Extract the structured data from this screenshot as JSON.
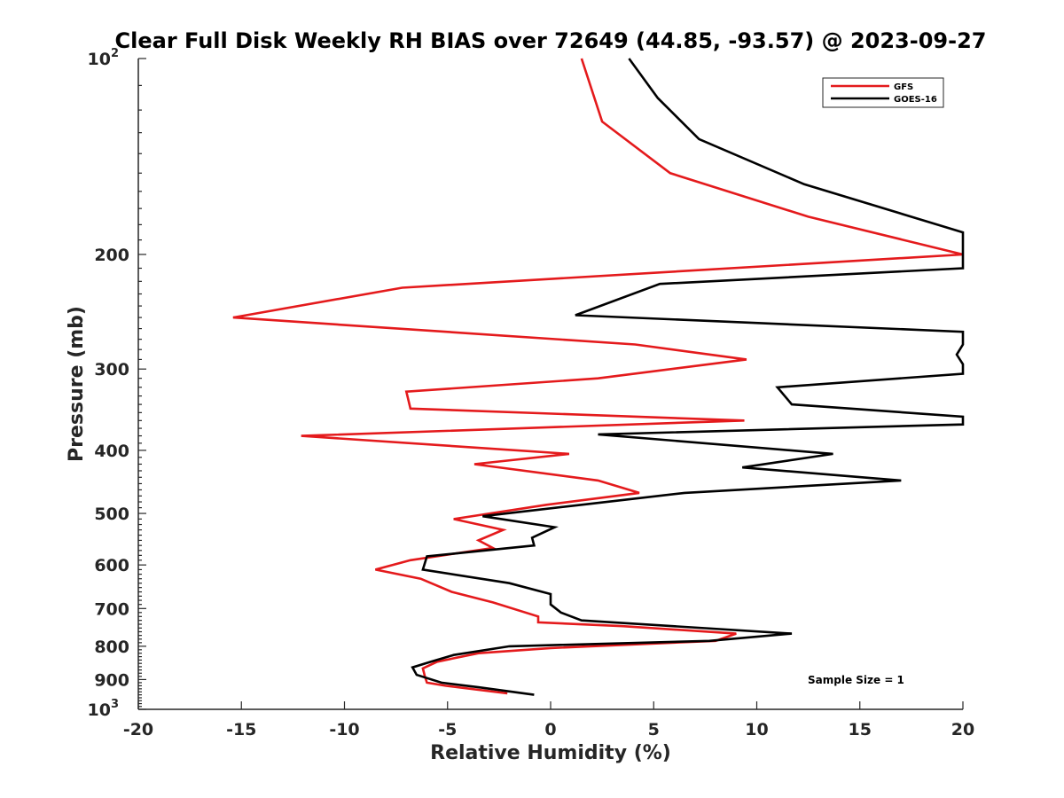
{
  "chart_data": {
    "type": "line",
    "title": "Clear Full Disk Weekly RH BIAS over 72649 (44.85, -93.57) @ 2023-09-27",
    "xlabel": "Relative Humidity (%)",
    "ylabel": "Pressure (mb)",
    "xlim": [
      -20,
      20
    ],
    "ylim": [
      100,
      1000
    ],
    "y_scale": "log",
    "y_reversed": true,
    "x_ticks": [
      "-20",
      "-15",
      "-10",
      "-5",
      "0",
      "5",
      "10",
      "15",
      "20"
    ],
    "y_ticks": [
      {
        "value": 100,
        "base": "10",
        "exp": "2"
      },
      {
        "value": 200,
        "label": "200"
      },
      {
        "value": 300,
        "label": "300"
      },
      {
        "value": 400,
        "label": "400"
      },
      {
        "value": 500,
        "label": "500"
      },
      {
        "value": 600,
        "label": "600"
      },
      {
        "value": 700,
        "label": "700"
      },
      {
        "value": 800,
        "label": "800"
      },
      {
        "value": 900,
        "label": "900"
      },
      {
        "value": 1000,
        "base": "10",
        "exp": "3"
      }
    ],
    "grid": false,
    "legend_position": "top-right",
    "annotation": "Sample Size = 1",
    "series": [
      {
        "name": "GFS",
        "color": "#e41a1c",
        "points": [
          {
            "x": 1.5,
            "y": 100
          },
          {
            "x": 2.5,
            "y": 125
          },
          {
            "x": 5.8,
            "y": 150
          },
          {
            "x": 12.5,
            "y": 175
          },
          {
            "x": 20.5,
            "y": 200
          },
          {
            "x": -7.2,
            "y": 225
          },
          {
            "x": -15.4,
            "y": 250
          },
          {
            "x": 4.1,
            "y": 275
          },
          {
            "x": 9.5,
            "y": 290
          },
          {
            "x": 2.3,
            "y": 310
          },
          {
            "x": -7.0,
            "y": 325
          },
          {
            "x": -6.8,
            "y": 345
          },
          {
            "x": 9.4,
            "y": 360
          },
          {
            "x": -12.1,
            "y": 380
          },
          {
            "x": 0.9,
            "y": 405
          },
          {
            "x": -3.7,
            "y": 420
          },
          {
            "x": 2.3,
            "y": 445
          },
          {
            "x": 4.3,
            "y": 465
          },
          {
            "x": -0.2,
            "y": 485
          },
          {
            "x": -4.7,
            "y": 510
          },
          {
            "x": -2.3,
            "y": 530
          },
          {
            "x": -3.5,
            "y": 550
          },
          {
            "x": -2.8,
            "y": 565
          },
          {
            "x": -6.8,
            "y": 590
          },
          {
            "x": -8.5,
            "y": 610
          },
          {
            "x": -6.3,
            "y": 630
          },
          {
            "x": -4.8,
            "y": 660
          },
          {
            "x": -2.8,
            "y": 685
          },
          {
            "x": -0.6,
            "y": 720
          },
          {
            "x": -0.6,
            "y": 735
          },
          {
            "x": 3.5,
            "y": 745
          },
          {
            "x": 9.0,
            "y": 765
          },
          {
            "x": 8.0,
            "y": 785
          },
          {
            "x": 0.0,
            "y": 805
          },
          {
            "x": -3.5,
            "y": 820
          },
          {
            "x": -5.5,
            "y": 845
          },
          {
            "x": -6.2,
            "y": 865
          },
          {
            "x": -6.1,
            "y": 890
          },
          {
            "x": -6.0,
            "y": 910
          },
          {
            "x": -5.1,
            "y": 920
          },
          {
            "x": -2.1,
            "y": 945
          }
        ]
      },
      {
        "name": "GOES-16",
        "color": "#000000",
        "points": [
          {
            "x": 3.8,
            "y": 100
          },
          {
            "x": 5.2,
            "y": 115
          },
          {
            "x": 7.2,
            "y": 133
          },
          {
            "x": 12.3,
            "y": 156
          },
          {
            "x": 20.0,
            "y": 185
          },
          {
            "x": 20.0,
            "y": 210
          },
          {
            "x": 5.3,
            "y": 222
          },
          {
            "x": 1.2,
            "y": 248
          },
          {
            "x": 20.0,
            "y": 263
          },
          {
            "x": 20.0,
            "y": 275
          },
          {
            "x": 19.7,
            "y": 285
          },
          {
            "x": 20.0,
            "y": 295
          },
          {
            "x": 20.0,
            "y": 305
          },
          {
            "x": 11.0,
            "y": 320
          },
          {
            "x": 11.7,
            "y": 340
          },
          {
            "x": 20.0,
            "y": 355
          },
          {
            "x": 20.0,
            "y": 365
          },
          {
            "x": 2.3,
            "y": 378
          },
          {
            "x": 13.7,
            "y": 405
          },
          {
            "x": 9.3,
            "y": 425
          },
          {
            "x": 17.0,
            "y": 445
          },
          {
            "x": 6.5,
            "y": 465
          },
          {
            "x": 1.5,
            "y": 485
          },
          {
            "x": -3.3,
            "y": 505
          },
          {
            "x": 0.2,
            "y": 525
          },
          {
            "x": -0.9,
            "y": 545
          },
          {
            "x": -0.8,
            "y": 560
          },
          {
            "x": -6.0,
            "y": 582
          },
          {
            "x": -6.2,
            "y": 610
          },
          {
            "x": -2.0,
            "y": 640
          },
          {
            "x": 0.0,
            "y": 665
          },
          {
            "x": 0.0,
            "y": 690
          },
          {
            "x": 0.5,
            "y": 710
          },
          {
            "x": 1.5,
            "y": 730
          },
          {
            "x": 11.7,
            "y": 765
          },
          {
            "x": 7.7,
            "y": 785
          },
          {
            "x": -2.0,
            "y": 800
          },
          {
            "x": -4.7,
            "y": 825
          },
          {
            "x": -5.8,
            "y": 845
          },
          {
            "x": -6.7,
            "y": 862
          },
          {
            "x": -6.5,
            "y": 885
          },
          {
            "x": -5.3,
            "y": 910
          },
          {
            "x": -3.5,
            "y": 925
          },
          {
            "x": -0.8,
            "y": 950
          }
        ]
      }
    ]
  }
}
